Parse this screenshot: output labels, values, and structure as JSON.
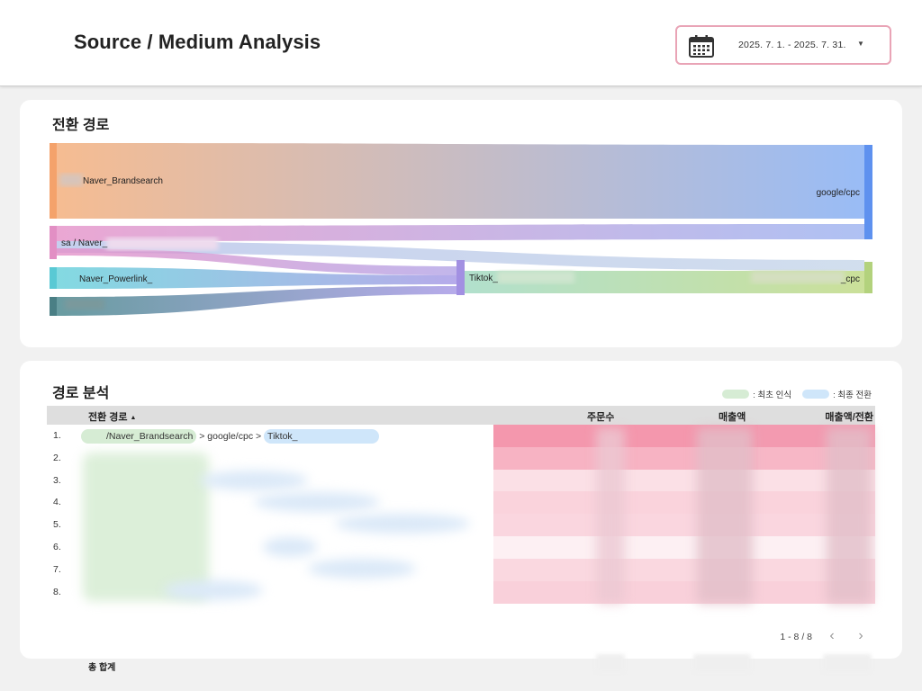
{
  "header": {
    "title": "Source / Medium Analysis",
    "date_range": "2025. 7. 1. - 2025. 7. 31.",
    "calendar_icon": "calendar-icon",
    "caret_icon": "caret-down-icon"
  },
  "sankey": {
    "title": "전환 경로",
    "nodes": {
      "brandsearch": "Naver_Brandsearch",
      "sa_naver": "sa / Naver_",
      "powerlink": "Naver_Powerlink_",
      "tiktok": "Tiktok_",
      "google_cpc": "google/cpc",
      "cpc": "_cpc"
    },
    "colors": {
      "orange": "#f4b07e",
      "pink": "#e591c8",
      "teal": "#6dd3dc",
      "dark_teal": "#4e8a90",
      "purple": "#a99ce6",
      "blue": "#6f9ff2",
      "green": "#b5da8f"
    }
  },
  "analysis": {
    "title": "경로 분석",
    "legend": {
      "first_touch": ": 최초 인식",
      "last_touch": ": 최종 전환"
    },
    "columns": {
      "path": "전환 경로",
      "orders": "주문수",
      "revenue": "매출액",
      "revenue_per_conversion": "매출액/전환"
    },
    "sort_icon": "sort-asc-icon",
    "rows": [
      {
        "num": "1."
      },
      {
        "num": "2."
      },
      {
        "num": "3."
      },
      {
        "num": "4."
      },
      {
        "num": "5."
      },
      {
        "num": "6."
      },
      {
        "num": "7."
      },
      {
        "num": "8."
      }
    ],
    "row1_path": {
      "first": "/Naver_Brandsearch",
      "sep1": " > ",
      "mid": "google/cpc",
      "sep2": " > ",
      "last": "Tiktok_"
    },
    "total_label": "총 합계",
    "pager": {
      "range": "1 - 8 / 8",
      "prev_icon": "chevron-left-icon",
      "next_icon": "chevron-right-icon"
    },
    "heat_colors": [
      "#f497ad",
      "#f7b3c3",
      "#fbe0e6",
      "#fad3dc",
      "#fad6df",
      "#fdf0f3",
      "#fad8e0",
      "#f9d0da"
    ]
  }
}
